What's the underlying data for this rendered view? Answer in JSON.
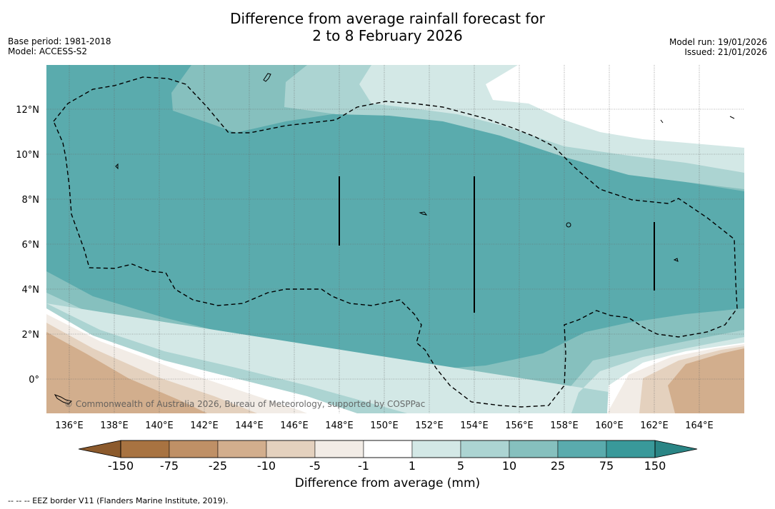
{
  "title": {
    "line1": "Difference from average rainfall forecast for",
    "line2": "2 to 8 February 2026"
  },
  "meta_left": {
    "base_period": "Base period: 1981-2018",
    "model": "Model: ACCESS-S2"
  },
  "meta_right": {
    "model_run": "Model run: 19/01/2026",
    "issued": "Issued: 21/01/2026"
  },
  "map": {
    "longitude_labels": [
      "136°E",
      "138°E",
      "140°E",
      "142°E",
      "144°E",
      "146°E",
      "148°E",
      "150°E",
      "152°E",
      "154°E",
      "156°E",
      "158°E",
      "160°E",
      "162°E",
      "164°E"
    ],
    "latitude_labels": [
      "12°N",
      "10°N",
      "8°N",
      "6°N",
      "4°N",
      "2°N",
      "0°"
    ],
    "copyright": "© Commonwealth of Australia 2026, Bureau of Meteorology, supported by COSPPac"
  },
  "colorbar": {
    "ticks": [
      "-150",
      "-75",
      "-25",
      "-10",
      "-5",
      "-1",
      "1",
      "5",
      "10",
      "25",
      "75",
      "150"
    ],
    "colors": [
      "#a87341",
      "#bf9066",
      "#d2ae8d",
      "#e4d1be",
      "#f2ece6",
      "#ffffff",
      "#d3e8e6",
      "#acd4d2",
      "#86c0be",
      "#5aabad",
      "#39999a"
    ],
    "low_extend": "#8c5a2c",
    "high_extend": "#2a8585",
    "title": "Difference from average (mm)"
  },
  "footer": {
    "note": "--  --  -- EEZ border V11 (Flanders Marine Institute, 2019)."
  }
}
